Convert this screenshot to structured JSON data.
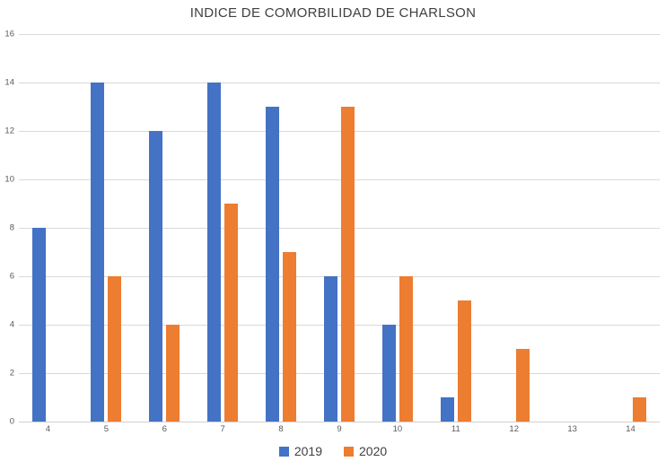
{
  "chart_data": {
    "type": "bar",
    "title": "INDICE DE COMORBILIDAD DE CHARLSON",
    "categories": [
      "4",
      "5",
      "6",
      "7",
      "8",
      "9",
      "10",
      "11",
      "12",
      "13",
      "14"
    ],
    "series": [
      {
        "name": "2019",
        "color": "#4472C4",
        "values": [
          8,
          14,
          12,
          14,
          13,
          6,
          4,
          1,
          0,
          0,
          0
        ]
      },
      {
        "name": "2020",
        "color": "#ED7D31",
        "values": [
          0,
          6,
          4,
          9,
          7,
          13,
          6,
          5,
          3,
          0,
          1
        ]
      }
    ],
    "xlabel": "",
    "ylabel": "",
    "ylim": [
      0,
      16
    ],
    "ytick_step": 2,
    "grid": true,
    "legend_position": "bottom"
  },
  "colors": {
    "gridline": "#d9d9d9",
    "axis_line": "#d0d0d0",
    "tick_label": "#595959",
    "title": "#404040",
    "background": "#ffffff"
  }
}
